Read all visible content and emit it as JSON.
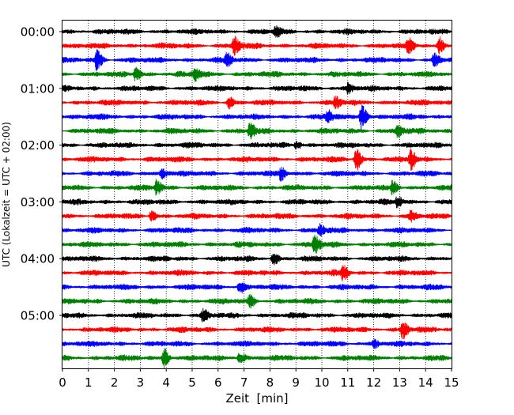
{
  "chart_data": {
    "type": "line",
    "subtype": "seismogram-helicorder",
    "xlabel": "Zeit  [min]",
    "ylabel": "UTC (Lokalzeit = UTC + 02:00)",
    "xlim": [
      0,
      15
    ],
    "x_ticks": [
      0,
      1,
      2,
      3,
      4,
      5,
      6,
      7,
      8,
      9,
      10,
      11,
      12,
      13,
      14,
      15
    ],
    "x_tick_labels": [
      "0",
      "1",
      "2",
      "3",
      "4",
      "5",
      "6",
      "7",
      "8",
      "9",
      "10",
      "11",
      "12",
      "13",
      "14",
      "15"
    ],
    "y_tick_labels": [
      "00:00",
      "01:00",
      "02:00",
      "03:00",
      "04:00",
      "05:00"
    ],
    "trace_interval_minutes": 15,
    "trace_count": 24,
    "trace_colors": [
      "#000000",
      "#ff0000",
      "#0000ff",
      "#008000"
    ],
    "vertical_grid": "dotted",
    "horizontal_grid": false,
    "events": [
      {
        "trace": 0,
        "x": 8.2,
        "amplitude": 1.2
      },
      {
        "trace": 1,
        "x": 6.6,
        "amplitude": 2.2
      },
      {
        "trace": 1,
        "x": 13.3,
        "amplitude": 1.6
      },
      {
        "trace": 1,
        "x": 14.5,
        "amplitude": 2.0
      },
      {
        "trace": 2,
        "x": 1.3,
        "amplitude": 2.4
      },
      {
        "trace": 2,
        "x": 6.3,
        "amplitude": 1.6
      },
      {
        "trace": 2,
        "x": 14.3,
        "amplitude": 1.4
      },
      {
        "trace": 3,
        "x": 2.8,
        "amplitude": 1.6
      },
      {
        "trace": 3,
        "x": 5.1,
        "amplitude": 1.4
      },
      {
        "trace": 4,
        "x": 11.0,
        "amplitude": 1.2
      },
      {
        "trace": 5,
        "x": 6.4,
        "amplitude": 1.4
      },
      {
        "trace": 5,
        "x": 10.5,
        "amplitude": 1.3
      },
      {
        "trace": 6,
        "x": 10.2,
        "amplitude": 1.6
      },
      {
        "trace": 6,
        "x": 11.5,
        "amplitude": 3.6
      },
      {
        "trace": 7,
        "x": 7.2,
        "amplitude": 1.7
      },
      {
        "trace": 7,
        "x": 12.9,
        "amplitude": 1.5
      },
      {
        "trace": 8,
        "x": 9.0,
        "amplitude": 1.0
      },
      {
        "trace": 9,
        "x": 11.3,
        "amplitude": 2.8
      },
      {
        "trace": 9,
        "x": 13.4,
        "amplitude": 2.4
      },
      {
        "trace": 10,
        "x": 3.8,
        "amplitude": 1.4
      },
      {
        "trace": 10,
        "x": 8.4,
        "amplitude": 1.4
      },
      {
        "trace": 11,
        "x": 3.6,
        "amplitude": 1.8
      },
      {
        "trace": 11,
        "x": 12.7,
        "amplitude": 1.5
      },
      {
        "trace": 12,
        "x": 12.9,
        "amplitude": 1.2
      },
      {
        "trace": 13,
        "x": 3.4,
        "amplitude": 1.2
      },
      {
        "trace": 13,
        "x": 13.4,
        "amplitude": 1.2
      },
      {
        "trace": 14,
        "x": 9.9,
        "amplitude": 1.3
      },
      {
        "trace": 15,
        "x": 9.7,
        "amplitude": 2.2
      },
      {
        "trace": 16,
        "x": 8.1,
        "amplitude": 1.4
      },
      {
        "trace": 17,
        "x": 10.8,
        "amplitude": 1.6
      },
      {
        "trace": 18,
        "x": 6.8,
        "amplitude": 1.8
      },
      {
        "trace": 19,
        "x": 7.2,
        "amplitude": 1.3
      },
      {
        "trace": 20,
        "x": 5.4,
        "amplitude": 1.2
      },
      {
        "trace": 21,
        "x": 13.1,
        "amplitude": 2.2
      },
      {
        "trace": 22,
        "x": 12.0,
        "amplitude": 1.1
      },
      {
        "trace": 23,
        "x": 3.9,
        "amplitude": 2.2
      },
      {
        "trace": 23,
        "x": 6.8,
        "amplitude": 1.6
      }
    ]
  }
}
